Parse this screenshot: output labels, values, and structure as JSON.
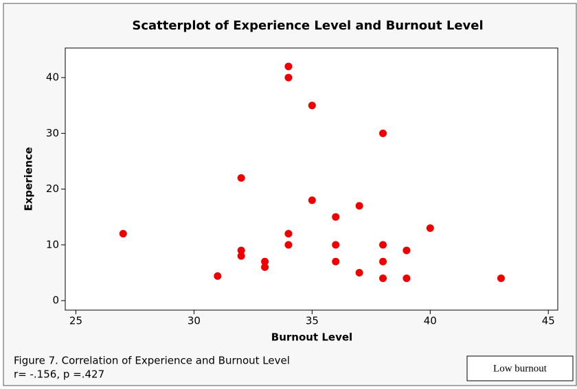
{
  "chart_data": {
    "type": "scatter",
    "title": "Scatterplot of Experience Level and Burnout Level",
    "x_label": "Burnout Level",
    "y_label": "Experience",
    "x": [
      27,
      31,
      32,
      32,
      32,
      33,
      33,
      34,
      34,
      34,
      34,
      35,
      35,
      36,
      36,
      36,
      37,
      37,
      38,
      38,
      38,
      38,
      39,
      39,
      40,
      43
    ],
    "series": [
      {
        "name": "Experience",
        "color": "#ee0000",
        "values": [
          12,
          4.4,
          22,
          9,
          8,
          7,
          6,
          42,
          40,
          12,
          10,
          35,
          18,
          15,
          10,
          7,
          17,
          5,
          30,
          10,
          7,
          4,
          9,
          4,
          13,
          4
        ]
      }
    ],
    "xlim": [
      24.55,
      45.4
    ],
    "xticks": [
      25,
      30,
      35,
      40,
      45
    ],
    "ylim": [
      -1.7,
      45.3
    ],
    "yticks": [
      0,
      10,
      20,
      30,
      40
    ],
    "grid": false,
    "caption": [
      "Figure 7. Correlation of Experience and Burnout Level",
      "r= -.156, p =.427"
    ],
    "annotation": "Low burnout"
  }
}
